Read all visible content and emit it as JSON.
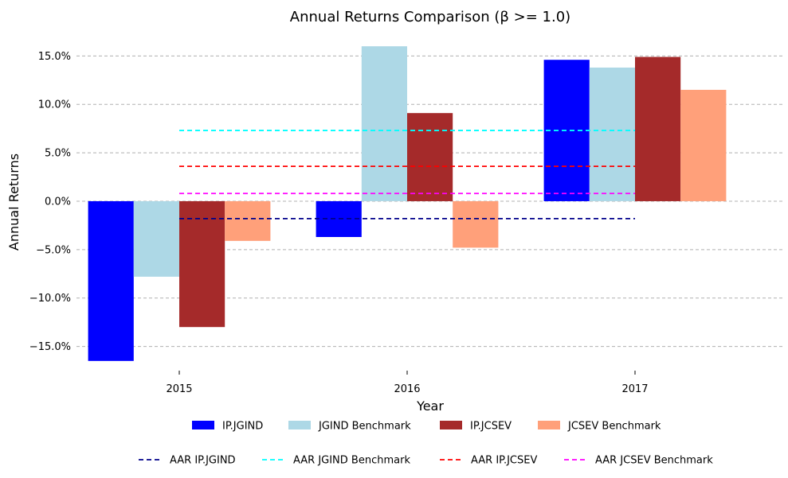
{
  "chart_data": {
    "type": "bar",
    "title": "Annual Returns Comparison (β >= 1.0)",
    "xlabel": "Year",
    "ylabel": "Annual Returns",
    "categories": [
      "2015",
      "2016",
      "2017"
    ],
    "ylim": [
      -17.5,
      17.0
    ],
    "yticks": [
      -15,
      -10,
      -5,
      0,
      5,
      10,
      15
    ],
    "ytick_labels": [
      "−15.0%",
      "−10.0%",
      "−5.0%",
      "0.0%",
      "5.0%",
      "10.0%",
      "15.0%"
    ],
    "grid": true,
    "series": [
      {
        "name": "IP.JGIND",
        "color": "#0000ff",
        "values": [
          -16.5,
          -3.7,
          14.6
        ]
      },
      {
        "name": "JGIND Benchmark",
        "color": "#add8e6",
        "values": [
          -7.8,
          16.0,
          13.8
        ]
      },
      {
        "name": "IP.JCSEV",
        "color": "#a52a2a",
        "values": [
          -13.0,
          9.1,
          14.9
        ]
      },
      {
        "name": "JCSEV Benchmark",
        "color": "#ffa07a",
        "values": [
          -4.1,
          -4.8,
          11.5
        ]
      }
    ],
    "reference_lines": [
      {
        "name": "AAR IP.JGIND",
        "color": "#00008b",
        "value": -1.8
      },
      {
        "name": "AAR JGIND Benchmark",
        "color": "#00ffff",
        "value": 7.3
      },
      {
        "name": "AAR IP.JCSEV",
        "color": "#ff0000",
        "value": 3.6
      },
      {
        "name": "AAR JCSEV Benchmark",
        "color": "#ff00ff",
        "value": 0.8
      }
    ],
    "legend_position": "bottom"
  }
}
